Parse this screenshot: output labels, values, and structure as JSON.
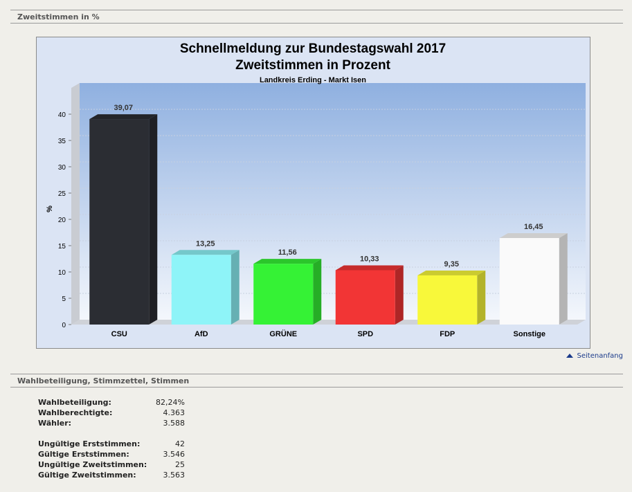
{
  "section1": {
    "title": "Zweitstimmen in %"
  },
  "section2": {
    "title": "Wahlbeteiligung, Stimmzettel, Stimmen"
  },
  "top_link": {
    "label": "Seitenanfang"
  },
  "colors": {
    "CSU": "#2b2d33",
    "AfD": "#8ef4f8",
    "GRÜNE": "#35f235",
    "SPD": "#f23535",
    "FDP": "#f8f83a",
    "Sonstige": "#fafafa"
  },
  "stats": {
    "group1": [
      {
        "label": "Wahlbeteiligung:",
        "value": "82,24%"
      },
      {
        "label": "Wahlberechtigte:",
        "value": "4.363"
      },
      {
        "label": "Wähler:",
        "value": "3.588"
      }
    ],
    "group2": [
      {
        "label": "Ungültige Erststimmen:",
        "value": "42"
      },
      {
        "label": "Gültige Erststimmen:",
        "value": "3.546"
      },
      {
        "label": "Ungültige Zweitstimmen:",
        "value": "25"
      },
      {
        "label": "Gültige Zweitstimmen:",
        "value": "3.563"
      }
    ]
  },
  "chart_data": {
    "type": "bar",
    "title": "Schnellmeldung zur Bundestagswahl 2017",
    "subtitle": "Zweitstimmen in Prozent",
    "subtitle2": "Landkreis Erding - Markt Isen",
    "xlabel": "",
    "ylabel": "%",
    "ylim": [
      0,
      45
    ],
    "yticks": [
      0,
      5,
      10,
      15,
      20,
      25,
      30,
      35,
      40
    ],
    "grid": true,
    "categories": [
      "CSU",
      "AfD",
      "GRÜNE",
      "SPD",
      "FDP",
      "Sonstige"
    ],
    "values": [
      39.07,
      13.25,
      11.56,
      10.33,
      9.35,
      16.45
    ],
    "data_labels": [
      "39,07",
      "13,25",
      "11,56",
      "10,33",
      "9,35",
      "16,45"
    ]
  }
}
